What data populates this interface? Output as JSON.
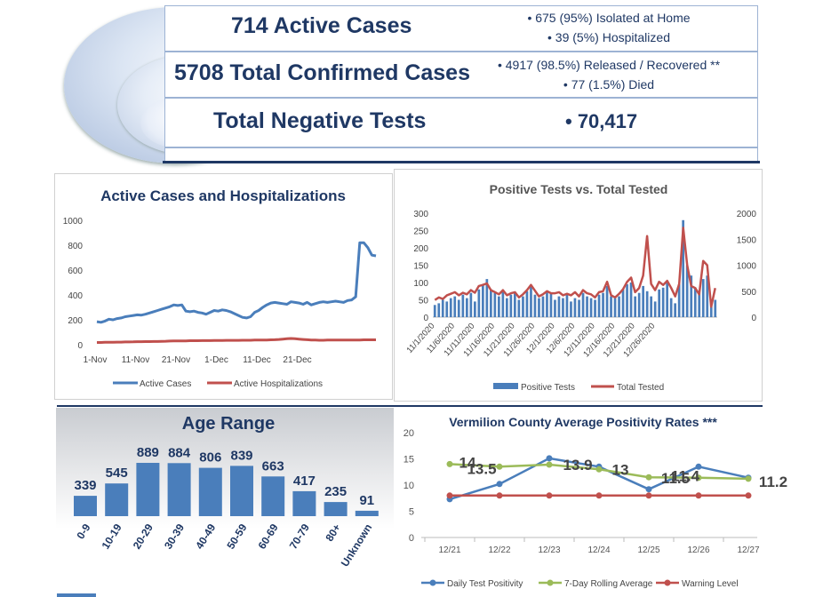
{
  "summary": {
    "active_cases": "714 Active Cases",
    "active_note_1": "• 675 (95%) Isolated at Home",
    "active_note_2": "• 39 (5%) Hospitalized",
    "total_confirmed": "5708 Total Confirmed Cases",
    "confirmed_note_1": "• 4917 (98.5%) Released / Recovered **",
    "confirmed_note_2": "• 77 (1.5%) Died",
    "negative_tests": "Total Negative Tests",
    "negative_value": "•  70,417"
  },
  "colors": {
    "navy": "#1f3864",
    "blue": "#4a7ebb",
    "red": "#c0504d",
    "green": "#9bbb59"
  },
  "chart_data": [
    {
      "type": "line",
      "title": "Active Cases and Hospitalizations",
      "xticks": [
        "1-Nov",
        "11-Nov",
        "21-Nov",
        "1-Dec",
        "11-Dec",
        "21-Dec"
      ],
      "ylim": [
        0,
        1000
      ],
      "yticks": [
        "0",
        "200",
        "400",
        "600",
        "800",
        "1000"
      ],
      "series": [
        {
          "name": "Active Cases",
          "values": [
            185,
            180,
            190,
            205,
            200,
            210,
            215,
            225,
            230,
            235,
            240,
            238,
            245,
            255,
            265,
            275,
            285,
            295,
            305,
            320,
            315,
            320,
            270,
            265,
            270,
            260,
            255,
            245,
            260,
            275,
            270,
            280,
            275,
            265,
            250,
            235,
            220,
            215,
            225,
            260,
            275,
            300,
            320,
            335,
            340,
            335,
            330,
            325,
            345,
            340,
            335,
            325,
            340,
            320,
            330,
            340,
            345,
            340,
            345,
            350,
            345,
            340,
            355,
            360,
            385,
            820,
            820,
            780,
            720,
            714
          ]
        },
        {
          "name": "Active  Hospitalizations",
          "values": [
            18,
            18,
            19,
            20,
            20,
            21,
            21,
            22,
            22,
            23,
            24,
            24,
            25,
            25,
            26,
            26,
            27,
            28,
            29,
            30,
            30,
            31,
            31,
            32,
            32,
            32,
            33,
            33,
            33,
            34,
            34,
            34,
            35,
            35,
            35,
            35,
            36,
            36,
            36,
            37,
            37,
            38,
            38,
            39,
            40,
            42,
            45,
            48,
            50,
            48,
            45,
            42,
            40,
            38,
            37,
            36,
            36,
            37,
            38,
            38,
            38,
            38,
            38,
            38,
            38,
            38,
            39,
            39,
            39,
            39
          ]
        }
      ]
    },
    {
      "type": "bar-line",
      "title": "Positive Tests vs. Total Tested",
      "xticks": [
        "11/1/2020",
        "11/6/2020",
        "11/11/2020",
        "11/16/2020",
        "11/21/2020",
        "11/26/2020",
        "12/1/2020",
        "12/6/2020",
        "12/11/2020",
        "12/16/2020",
        "12/21/2020",
        "12/26/2020"
      ],
      "ylim_left": [
        0,
        300
      ],
      "yticks_left": [
        "0",
        "50",
        "100",
        "150",
        "200",
        "250",
        "300"
      ],
      "ylim_right": [
        0,
        2000
      ],
      "yticks_right": [
        "0",
        "500",
        "1000",
        "1500",
        "2000"
      ],
      "series": [
        {
          "name": "Positive Tests",
          "values": [
            35,
            40,
            50,
            45,
            55,
            60,
            50,
            65,
            55,
            70,
            45,
            80,
            95,
            110,
            80,
            70,
            60,
            75,
            55,
            65,
            70,
            50,
            60,
            75,
            90,
            65,
            55,
            60,
            75,
            70,
            50,
            60,
            55,
            65,
            45,
            55,
            50,
            70,
            60,
            55,
            50,
            65,
            70,
            90,
            60,
            55,
            60,
            80,
            95,
            100,
            60,
            70,
            90,
            75,
            60,
            45,
            80,
            85,
            100,
            55,
            40,
            95,
            280,
            150,
            120,
            85,
            70,
            110,
            120,
            40,
            50
          ]
        },
        {
          "name": "Total Tested",
          "values": [
            330,
            380,
            350,
            420,
            450,
            480,
            420,
            470,
            440,
            520,
            470,
            600,
            620,
            650,
            520,
            480,
            440,
            520,
            420,
            460,
            480,
            380,
            440,
            520,
            620,
            510,
            400,
            440,
            500,
            460,
            460,
            480,
            420,
            450,
            420,
            480,
            400,
            520,
            460,
            440,
            380,
            480,
            500,
            680,
            420,
            380,
            450,
            540,
            680,
            760,
            480,
            560,
            800,
            1560,
            640,
            520,
            680,
            620,
            700,
            560,
            400,
            640,
            1720,
            1000,
            600,
            560,
            440,
            1080,
            1000,
            200,
            560
          ]
        }
      ]
    },
    {
      "type": "bar",
      "title": "Age Range",
      "categories": [
        "0-9",
        "10-19",
        "20-29",
        "30-39",
        "40-49",
        "50-59",
        "60-69",
        "70-79",
        "80+",
        "Unknown"
      ],
      "values": [
        339,
        545,
        889,
        884,
        806,
        839,
        663,
        417,
        235,
        91
      ]
    },
    {
      "type": "line",
      "title": "Vermilion County Average Positivity Rates ***",
      "categories": [
        "12/21",
        "12/22",
        "12/23",
        "12/24",
        "12/25",
        "12/26",
        "12/27"
      ],
      "ylim": [
        0,
        20
      ],
      "yticks": [
        "0",
        "5",
        "10",
        "15",
        "20"
      ],
      "series": [
        {
          "name": "Daily Test Positivity",
          "values": [
            7.3,
            10.2,
            15.1,
            13.5,
            9.2,
            13.5,
            11.4
          ]
        },
        {
          "name": "7-Day Rolling Average",
          "values": [
            14,
            13.5,
            13.9,
            13,
            11.5,
            11.4,
            11.2
          ],
          "labels": [
            "14",
            "13.5",
            "13.9",
            "13",
            "11.5",
            "11.4",
            "11.2"
          ]
        },
        {
          "name": "Warning Level",
          "values": [
            8,
            8,
            8,
            8,
            8,
            8,
            8
          ]
        }
      ]
    }
  ]
}
